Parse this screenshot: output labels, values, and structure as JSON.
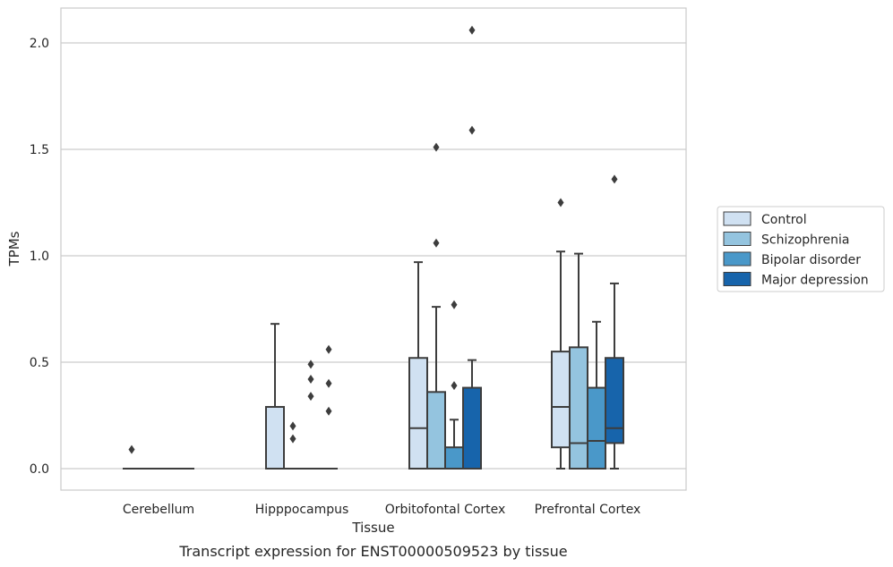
{
  "chart_data": {
    "type": "box",
    "xlabel": "Tissue",
    "ylabel": "TPMs",
    "caption": "Transcript expression for ENST00000509523 by tissue",
    "ylim": [
      -0.1,
      2.16
    ],
    "yticks": [
      0.0,
      0.5,
      1.0,
      1.5,
      2.0
    ],
    "ytick_labels": [
      "0.0",
      "0.5",
      "1.0",
      "1.5",
      "2.0"
    ],
    "grid": "horizontal",
    "legend_position": "right",
    "categories": [
      "Cerebellum",
      "Hipppocampus",
      "Orbitofontal Cortex",
      "Prefrontal Cortex"
    ],
    "series": [
      {
        "name": "Control",
        "color": "#d0e1f2",
        "boxes": [
          {
            "q1": 0,
            "median": 0,
            "q3": 0,
            "whislo": 0,
            "whishi": 0,
            "fliers": [
              0.09
            ]
          },
          {
            "q1": 0,
            "median": 0,
            "q3": 0.29,
            "whislo": 0,
            "whishi": 0.68,
            "fliers": []
          },
          {
            "q1": 0,
            "median": 0.19,
            "q3": 0.52,
            "whislo": 0,
            "whishi": 0.97,
            "fliers": []
          },
          {
            "q1": 0.1,
            "median": 0.29,
            "q3": 0.55,
            "whislo": 0,
            "whishi": 1.02,
            "fliers": [
              1.25
            ]
          }
        ]
      },
      {
        "name": "Schizophrenia",
        "color": "#94c4df",
        "boxes": [
          {
            "q1": 0,
            "median": 0,
            "q3": 0,
            "whislo": 0,
            "whishi": 0,
            "fliers": []
          },
          {
            "q1": 0,
            "median": 0,
            "q3": 0,
            "whislo": 0,
            "whishi": 0,
            "fliers": [
              0.14,
              0.2
            ]
          },
          {
            "q1": 0,
            "median": 0,
            "q3": 0.36,
            "whislo": 0,
            "whishi": 0.76,
            "fliers": [
              1.06,
              1.51
            ]
          },
          {
            "q1": 0,
            "median": 0.12,
            "q3": 0.57,
            "whislo": 0,
            "whishi": 1.01,
            "fliers": []
          }
        ]
      },
      {
        "name": "Bipolar disorder",
        "color": "#4a98c9",
        "boxes": [
          {
            "q1": 0,
            "median": 0,
            "q3": 0,
            "whislo": 0,
            "whishi": 0,
            "fliers": []
          },
          {
            "q1": 0,
            "median": 0,
            "q3": 0,
            "whislo": 0,
            "whishi": 0,
            "fliers": [
              0.34,
              0.42,
              0.49
            ]
          },
          {
            "q1": 0,
            "median": 0,
            "q3": 0.1,
            "whislo": 0,
            "whishi": 0.23,
            "fliers": [
              0.39,
              0.77
            ]
          },
          {
            "q1": 0,
            "median": 0.13,
            "q3": 0.38,
            "whislo": 0,
            "whishi": 0.69,
            "fliers": []
          }
        ]
      },
      {
        "name": "Major depression",
        "color": "#1764ab",
        "boxes": [
          {
            "q1": 0,
            "median": 0,
            "q3": 0,
            "whislo": 0,
            "whishi": 0,
            "fliers": []
          },
          {
            "q1": 0,
            "median": 0,
            "q3": 0,
            "whislo": 0,
            "whishi": 0,
            "fliers": [
              0.27,
              0.4,
              0.56
            ]
          },
          {
            "q1": 0,
            "median": 0,
            "q3": 0.38,
            "whislo": 0,
            "whishi": 0.51,
            "fliers": [
              1.59,
              2.06
            ]
          },
          {
            "q1": 0.12,
            "median": 0.19,
            "q3": 0.52,
            "whislo": 0,
            "whishi": 0.87,
            "fliers": [
              1.36
            ]
          }
        ]
      }
    ]
  }
}
